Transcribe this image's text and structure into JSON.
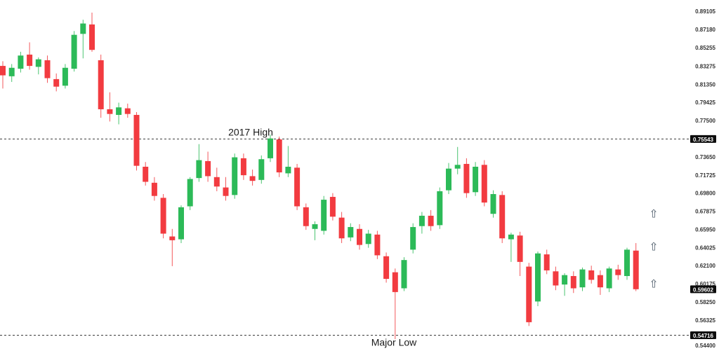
{
  "chart_data": {
    "type": "candlestick",
    "title": "",
    "legend": [],
    "grid": false,
    "ylim": [
      0.544,
      0.896
    ],
    "candles": [
      [
        0.833,
        0.838,
        0.809,
        0.823
      ],
      [
        0.822,
        0.835,
        0.816,
        0.831
      ],
      [
        0.83,
        0.848,
        0.826,
        0.844
      ],
      [
        0.845,
        0.858,
        0.829,
        0.833
      ],
      [
        0.832,
        0.842,
        0.824,
        0.84
      ],
      [
        0.839,
        0.844,
        0.815,
        0.82
      ],
      [
        0.819,
        0.825,
        0.806,
        0.811
      ],
      [
        0.812,
        0.835,
        0.809,
        0.831
      ],
      [
        0.83,
        0.87,
        0.827,
        0.866
      ],
      [
        0.867,
        0.882,
        0.841,
        0.878
      ],
      [
        0.877,
        0.8896,
        0.848,
        0.85
      ],
      [
        0.839,
        0.845,
        0.778,
        0.787
      ],
      [
        0.787,
        0.805,
        0.774,
        0.782
      ],
      [
        0.781,
        0.794,
        0.771,
        0.789
      ],
      [
        0.788,
        0.793,
        0.778,
        0.782
      ],
      [
        0.781,
        0.784,
        0.722,
        0.727
      ],
      [
        0.726,
        0.731,
        0.706,
        0.71
      ],
      [
        0.709,
        0.715,
        0.69,
        0.695
      ],
      [
        0.693,
        0.697,
        0.65,
        0.655
      ],
      [
        0.652,
        0.66,
        0.6205,
        0.648
      ],
      [
        0.649,
        0.685,
        0.645,
        0.683
      ],
      [
        0.684,
        0.715,
        0.68,
        0.713
      ],
      [
        0.714,
        0.75,
        0.71,
        0.733
      ],
      [
        0.732,
        0.742,
        0.71,
        0.716
      ],
      [
        0.715,
        0.725,
        0.7,
        0.705
      ],
      [
        0.704,
        0.715,
        0.69,
        0.695
      ],
      [
        0.696,
        0.74,
        0.692,
        0.736
      ],
      [
        0.735,
        0.74,
        0.712,
        0.717
      ],
      [
        0.716,
        0.723,
        0.706,
        0.711
      ],
      [
        0.712,
        0.738,
        0.708,
        0.734
      ],
      [
        0.735,
        0.76,
        0.731,
        0.756
      ],
      [
        0.755,
        0.758,
        0.715,
        0.72
      ],
      [
        0.719,
        0.748,
        0.715,
        0.726
      ],
      [
        0.725,
        0.729,
        0.68,
        0.684
      ],
      [
        0.683,
        0.687,
        0.659,
        0.663
      ],
      [
        0.66,
        0.668,
        0.648,
        0.665
      ],
      [
        0.658,
        0.695,
        0.654,
        0.691
      ],
      [
        0.694,
        0.698,
        0.669,
        0.673
      ],
      [
        0.672,
        0.678,
        0.645,
        0.65
      ],
      [
        0.651,
        0.666,
        0.647,
        0.662
      ],
      [
        0.66,
        0.665,
        0.638,
        0.643
      ],
      [
        0.644,
        0.659,
        0.64,
        0.655
      ],
      [
        0.654,
        0.658,
        0.628,
        0.632
      ],
      [
        0.631,
        0.635,
        0.603,
        0.607
      ],
      [
        0.614,
        0.618,
        0.543,
        0.593
      ],
      [
        0.597,
        0.63,
        0.594,
        0.627
      ],
      [
        0.638,
        0.666,
        0.634,
        0.662
      ],
      [
        0.663,
        0.678,
        0.655,
        0.674
      ],
      [
        0.674,
        0.68,
        0.658,
        0.663
      ],
      [
        0.664,
        0.704,
        0.66,
        0.7
      ],
      [
        0.701,
        0.73,
        0.697,
        0.724
      ],
      [
        0.724,
        0.747,
        0.718,
        0.728
      ],
      [
        0.729,
        0.735,
        0.693,
        0.698
      ],
      [
        0.699,
        0.731,
        0.695,
        0.726
      ],
      [
        0.728,
        0.733,
        0.684,
        0.688
      ],
      [
        0.676,
        0.701,
        0.672,
        0.697
      ],
      [
        0.696,
        0.7,
        0.645,
        0.65
      ],
      [
        0.649,
        0.656,
        0.625,
        0.654
      ],
      [
        0.653,
        0.657,
        0.61,
        0.625
      ],
      [
        0.62,
        0.624,
        0.557,
        0.561
      ],
      [
        0.583,
        0.636,
        0.578,
        0.634
      ],
      [
        0.633,
        0.638,
        0.612,
        0.616
      ],
      [
        0.615,
        0.62,
        0.595,
        0.6
      ],
      [
        0.601,
        0.613,
        0.589,
        0.611
      ],
      [
        0.61,
        0.615,
        0.592,
        0.597
      ],
      [
        0.598,
        0.619,
        0.594,
        0.617
      ],
      [
        0.616,
        0.621,
        0.602,
        0.606
      ],
      [
        0.611,
        0.616,
        0.59,
        0.598
      ],
      [
        0.597,
        0.62,
        0.593,
        0.618
      ],
      [
        0.617,
        0.622,
        0.606,
        0.611
      ],
      [
        0.61,
        0.64,
        0.606,
        0.638
      ],
      [
        0.637,
        0.645,
        0.594,
        0.59602
      ]
    ],
    "y_axis": {
      "side": "right",
      "ticks": [
        {
          "label": "0.89105",
          "price": 0.89105
        },
        {
          "label": "0.87180",
          "price": 0.8718
        },
        {
          "label": "0.85255",
          "price": 0.85255
        },
        {
          "label": "0.83275",
          "price": 0.83275
        },
        {
          "label": "0.81350",
          "price": 0.8135
        },
        {
          "label": "0.79425",
          "price": 0.79425
        },
        {
          "label": "0.77500",
          "price": 0.775
        },
        {
          "label": "0.73650",
          "price": 0.7365
        },
        {
          "label": "0.71725",
          "price": 0.71725
        },
        {
          "label": "0.69800",
          "price": 0.698
        },
        {
          "label": "0.67875",
          "price": 0.67875
        },
        {
          "label": "0.65950",
          "price": 0.6595
        },
        {
          "label": "0.64025",
          "price": 0.64025
        },
        {
          "label": "0.62100",
          "price": 0.621
        },
        {
          "label": "0.60175",
          "price": 0.60175
        },
        {
          "label": "0.58250",
          "price": 0.5825
        },
        {
          "label": "0.56325",
          "price": 0.56325
        },
        {
          "label": "0.54400",
          "price": 0.544,
          "dy": 10
        }
      ]
    },
    "levels": [
      {
        "name": "2017-high",
        "label": "2017 High",
        "price": 0.75543,
        "badge": "0.75543",
        "label_x": 357,
        "label_side": "above"
      },
      {
        "name": "major-low",
        "label": "Major Low",
        "price": 0.54716,
        "badge": "0.54716",
        "label_x": 561,
        "label_side": "below"
      }
    ],
    "current_price": {
      "badge": "0.59602",
      "price": 0.59602
    },
    "markers": {
      "glyph": "⇧",
      "name": "up-arrow",
      "x": 931,
      "items": [
        {
          "price": 0.676
        },
        {
          "price": 0.6412
        },
        {
          "price": 0.6018
        }
      ]
    }
  },
  "colors": {
    "background": "#ffffff",
    "up": "#2cba58",
    "down": "#f23b40",
    "tick_text": "#333333",
    "badge_bg": "#0d0d0d",
    "badge_text": "#ffffff",
    "level_line": "#3a3a3a",
    "annotation_text": "#1a1a1a",
    "arrow": "#4e5d6b"
  }
}
